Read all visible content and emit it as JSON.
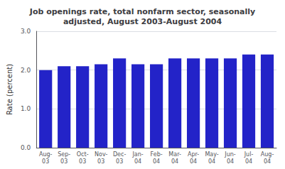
{
  "chart_data": {
    "type": "bar",
    "title": "Job openings rate, total nonfarm sector, seasonally\nadjusted, August 2003-August 2004",
    "categories": [
      "Aug-\n03",
      "Sep-\n03",
      "Oct-\n03",
      "Nov-\n03",
      "Dec-\n03",
      "Jan-\n04",
      "Feb-\n04",
      "Mar-\n04",
      "Apr-\n04",
      "May-\n04",
      "Jun-\n04",
      "Jul-\n04",
      "Aug-\n04"
    ],
    "values": [
      2.0,
      2.1,
      2.1,
      2.15,
      2.3,
      2.15,
      2.15,
      2.3,
      2.3,
      2.3,
      2.3,
      2.4,
      2.4
    ],
    "color": "#2323c8",
    "ylabel": "Rate (percent)",
    "ylim": [
      0.0,
      3.0
    ],
    "yticks": [
      {
        "value": 0.0,
        "label": "0.0"
      },
      {
        "value": 1.0,
        "label": "1.0"
      },
      {
        "value": 2.0,
        "label": "2.0"
      },
      {
        "value": 3.0,
        "label": "3.0"
      }
    ],
    "grid": true
  }
}
